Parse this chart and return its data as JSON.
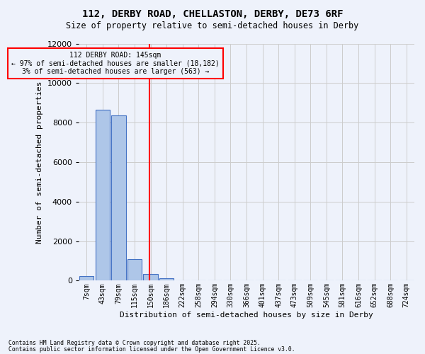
{
  "title_line1": "112, DERBY ROAD, CHELLASTON, DERBY, DE73 6RF",
  "title_line2": "Size of property relative to semi-detached houses in Derby",
  "xlabel": "Distribution of semi-detached houses by size in Derby",
  "ylabel": "Number of semi-detached properties",
  "annotation_line1": "112 DERBY ROAD: 145sqm",
  "annotation_line2": "← 97% of semi-detached houses are smaller (18,182)",
  "annotation_line3": "3% of semi-detached houses are larger (563) →",
  "footnote1": "Contains HM Land Registry data © Crown copyright and database right 2025.",
  "footnote2": "Contains public sector information licensed under the Open Government Licence v3.0.",
  "bin_labels": [
    "7sqm",
    "43sqm",
    "79sqm",
    "115sqm",
    "150sqm",
    "186sqm",
    "222sqm",
    "258sqm",
    "294sqm",
    "330sqm",
    "366sqm",
    "401sqm",
    "437sqm",
    "473sqm",
    "509sqm",
    "545sqm",
    "581sqm",
    "616sqm",
    "652sqm",
    "688sqm",
    "724sqm"
  ],
  "bar_values": [
    230,
    8650,
    8350,
    1100,
    330,
    120,
    30,
    10,
    5,
    2,
    1,
    0,
    0,
    0,
    0,
    0,
    0,
    0,
    0,
    0,
    0
  ],
  "bar_color": "#aec6e8",
  "bar_edge_color": "#4472c4",
  "vline_bin_index": 4,
  "vline_color": "red",
  "annotation_box_color": "red",
  "grid_color": "#cccccc",
  "background_color": "#eef2fb",
  "ylim": [
    0,
    12000
  ],
  "yticks": [
    0,
    2000,
    4000,
    6000,
    8000,
    10000,
    12000
  ]
}
